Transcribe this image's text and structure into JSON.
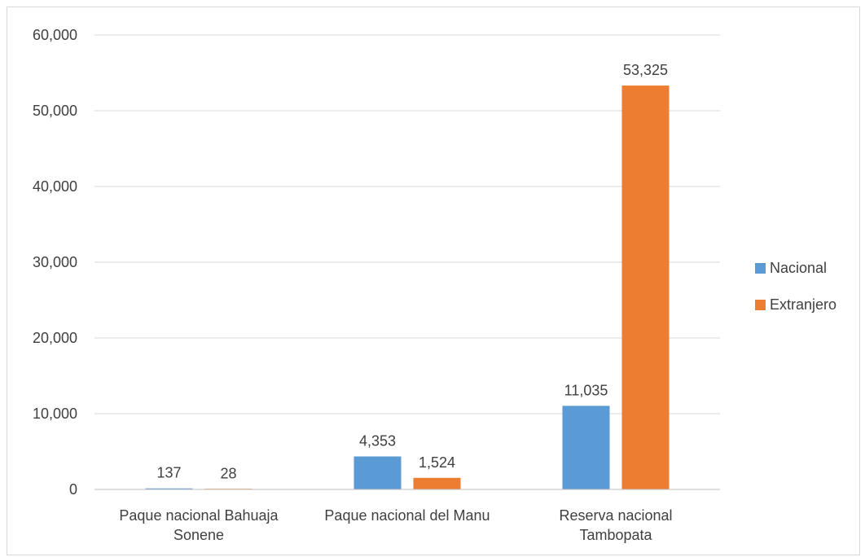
{
  "chart_data": {
    "type": "bar",
    "title": "",
    "xlabel": "",
    "ylabel": "",
    "categories": [
      [
        "Paque nacional Bahuaja",
        "Sonene"
      ],
      [
        "Paque nacional del Manu"
      ],
      [
        "Reserva nacional",
        "Tambopata"
      ]
    ],
    "series": [
      {
        "name": "Nacional",
        "color": "#5b9bd5",
        "values": [
          137,
          4353,
          11035
        ],
        "labels": [
          "137",
          "4,353",
          "11,035"
        ]
      },
      {
        "name": "Extranjero",
        "color": "#ed7d31",
        "values": [
          28,
          1524,
          53325
        ],
        "labels": [
          "28",
          "1,524",
          "53,325"
        ]
      }
    ],
    "ylim": [
      0,
      60000
    ],
    "yticks": [
      0,
      10000,
      20000,
      30000,
      40000,
      50000,
      60000
    ],
    "ytick_labels": [
      "0",
      "10,000",
      "20,000",
      "30,000",
      "40,000",
      "50,000",
      "60,000"
    ],
    "grid": true,
    "legend_position": "right"
  }
}
